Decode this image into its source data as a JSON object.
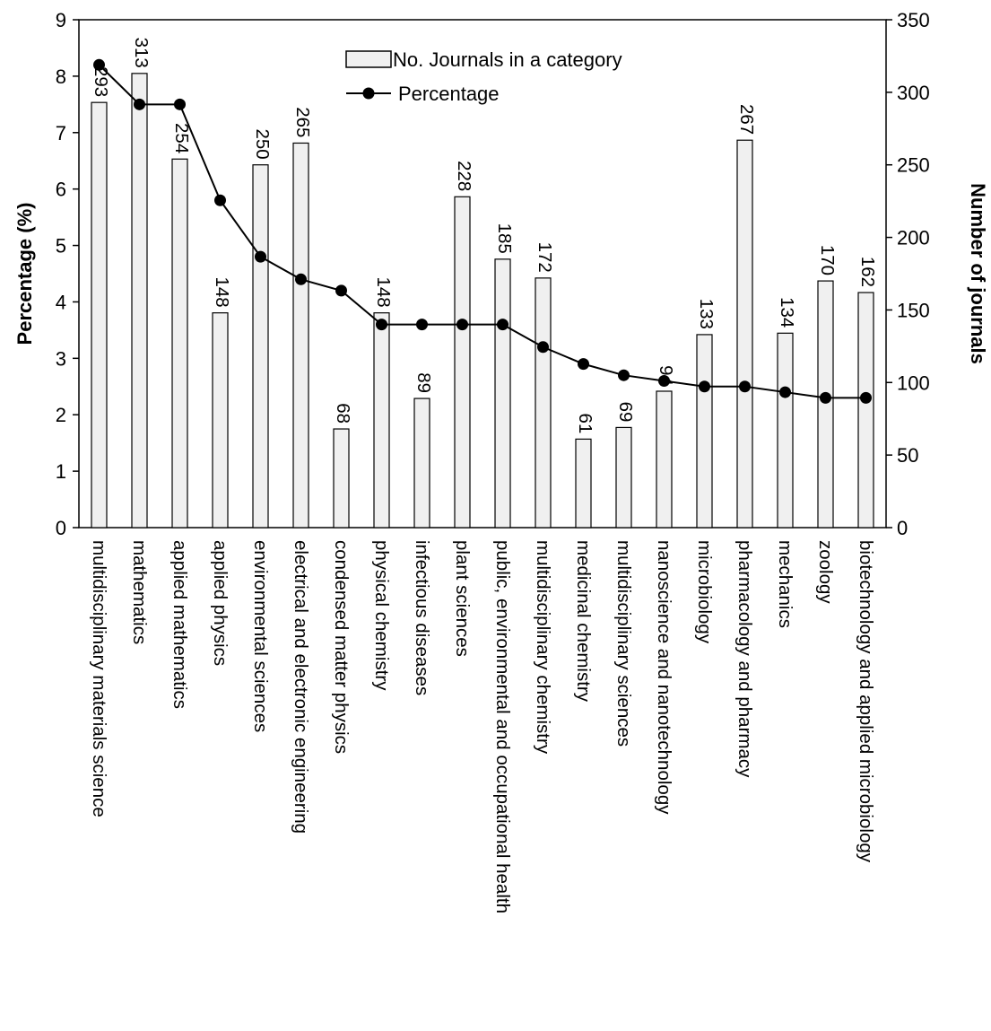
{
  "chart_data": {
    "type": "bar",
    "categories": [
      "multidisciplinary materials science",
      "mathematics",
      "applied mathematics",
      "applied physics",
      "environmental sciences",
      "electrical and electronic engineering",
      "condensed matter physics",
      "physical chemistry",
      "infectious diseases",
      "plant sciences",
      "public, environmental and occupational health",
      "multidisciplinary chemistry",
      "medicinal chemistry",
      "multidisciplinary sciences",
      "nanoscience and nanotechnology",
      "microbiology",
      "pharmacology and pharmacy",
      "mechanics",
      "zoology",
      "biotechnology and applied microbiology"
    ],
    "series": [
      {
        "name": "No. Journals in a category",
        "type": "bar",
        "axis": "right",
        "color": "#f0f0f0",
        "values": [
          293,
          313,
          254,
          148,
          250,
          265,
          68,
          148,
          89,
          228,
          185,
          172,
          61,
          69,
          94,
          133,
          267,
          134,
          170,
          162
        ],
        "labels": [
          "293",
          "313",
          "254",
          "148",
          "250",
          "265",
          "68",
          "148",
          "89",
          "228",
          "185",
          "172",
          "61",
          "69",
          "94",
          "133",
          "267",
          "134",
          "170",
          "162"
        ]
      },
      {
        "name": "Percentage",
        "type": "line",
        "axis": "left",
        "color": "#000000",
        "values": [
          8.2,
          7.5,
          7.5,
          5.8,
          4.8,
          4.4,
          4.2,
          3.6,
          3.6,
          3.6,
          3.6,
          3.2,
          2.9,
          2.7,
          2.6,
          2.5,
          2.5,
          2.4,
          2.3,
          2.3
        ]
      }
    ],
    "ylabel": "Percentage (%)",
    "y2label": "Number of journals",
    "ylim": [
      0,
      9
    ],
    "y2lim": [
      0,
      350
    ],
    "yticks": [
      "0",
      "1",
      "2",
      "3",
      "4",
      "5",
      "6",
      "7",
      "8",
      "9"
    ],
    "y2ticks": [
      "0",
      "50",
      "100",
      "150",
      "200",
      "250",
      "300",
      "350"
    ],
    "grid": false,
    "legend_position": "top-center"
  }
}
